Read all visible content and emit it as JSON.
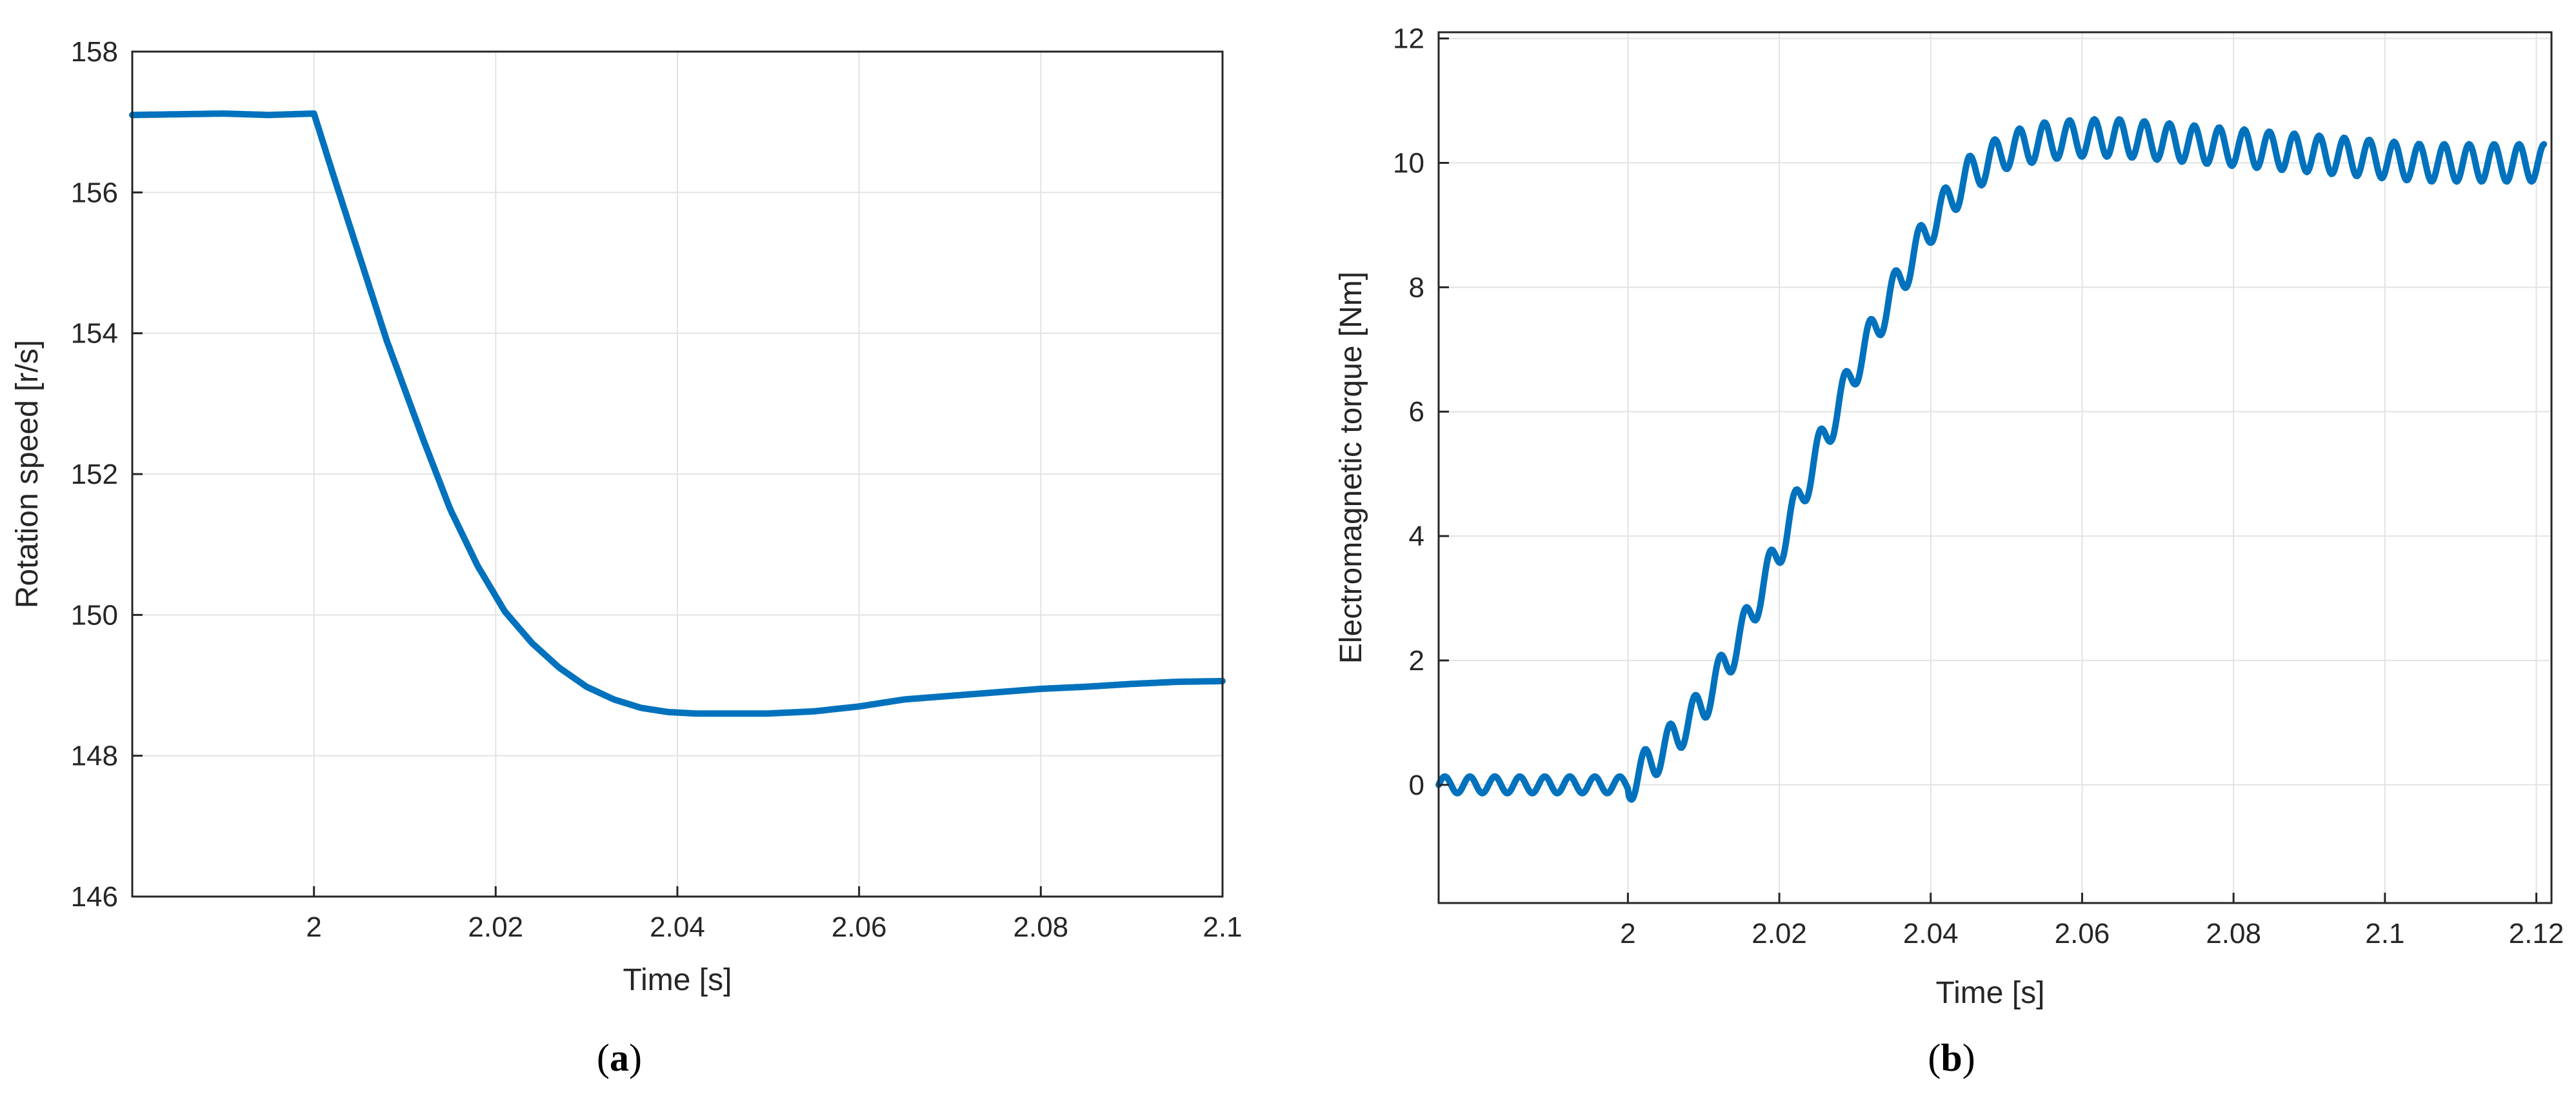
{
  "chart_data": [
    {
      "type": "line",
      "panel_label": "(a)",
      "panel_letter": "a",
      "xlabel": "Time [s]",
      "ylabel": "Rotation speed [r/s]",
      "xlim": [
        1.98,
        2.1
      ],
      "ylim": [
        146,
        158
      ],
      "xticks": [
        2,
        2.02,
        2.04,
        2.06,
        2.08,
        2.1
      ],
      "xtick_labels": [
        "2",
        "2.02",
        "2.04",
        "2.06",
        "2.08",
        "2.1"
      ],
      "yticks": [
        146,
        148,
        150,
        152,
        154,
        156,
        158
      ],
      "ytick_labels": [
        "146",
        "148",
        "150",
        "152",
        "154",
        "156",
        "158"
      ],
      "grid": true,
      "color": "#0072BD",
      "series": [
        {
          "x": [
            1.98,
            1.99,
            1.995,
            2.0,
            2.002,
            2.004,
            2.006,
            2.008,
            2.01,
            2.012,
            2.015,
            2.018,
            2.021,
            2.024,
            2.027,
            2.03,
            2.033,
            2.036,
            2.039,
            2.042,
            2.045,
            2.05,
            2.055,
            2.06,
            2.065,
            2.07,
            2.075,
            2.08,
            2.085,
            2.09,
            2.095,
            2.1
          ],
          "y": [
            157.1,
            157.12,
            157.1,
            157.12,
            156.3,
            155.5,
            154.7,
            153.9,
            153.2,
            152.5,
            151.5,
            150.7,
            150.05,
            149.6,
            149.25,
            148.98,
            148.8,
            148.68,
            148.62,
            148.6,
            148.6,
            148.6,
            148.63,
            148.7,
            148.8,
            148.85,
            148.9,
            148.95,
            148.98,
            149.02,
            149.05,
            149.06
          ]
        }
      ]
    },
    {
      "type": "line",
      "panel_label": "(b)",
      "panel_letter": "b",
      "xlabel": "Time [s]",
      "ylabel": "Electromagnetic torque [Nm]",
      "xlim": [
        1.975,
        2.122
      ],
      "ylim": [
        -1.9,
        12.1
      ],
      "xticks": [
        2,
        2.02,
        2.04,
        2.06,
        2.08,
        2.1,
        2.12
      ],
      "xtick_labels": [
        "2",
        "2.02",
        "2.04",
        "2.06",
        "2.08",
        "2.1",
        "2.12"
      ],
      "yticks": [
        0,
        2,
        4,
        6,
        8,
        10,
        12
      ],
      "ytick_labels": [
        "0",
        "2",
        "4",
        "6",
        "8",
        "10",
        "12"
      ],
      "grid": true,
      "color": "#0072BD",
      "series": [
        {
          "x": [
            1.975,
            1.98,
            1.985,
            1.99,
            1.995,
            2.0,
            2.005,
            2.01,
            2.015,
            2.02,
            2.025,
            2.03,
            2.035,
            2.04,
            2.045,
            2.05,
            2.055,
            2.06,
            2.065,
            2.07,
            2.075,
            2.08,
            2.085,
            2.09,
            2.095,
            2.1,
            2.105,
            2.11,
            2.115,
            2.121
          ],
          "y": [
            0.0,
            0.0,
            0.0,
            0.0,
            0.0,
            0.0,
            0.6,
            1.3,
            2.4,
            3.8,
            5.3,
            6.7,
            7.9,
            9.0,
            9.8,
            10.2,
            10.35,
            10.4,
            10.4,
            10.35,
            10.3,
            10.25,
            10.2,
            10.15,
            10.1,
            10.05,
            10.0,
            10.0,
            10.0,
            10.0
          ],
          "ripple": {
            "amplitude": 0.3,
            "period_s": 0.0033
          }
        }
      ]
    }
  ]
}
